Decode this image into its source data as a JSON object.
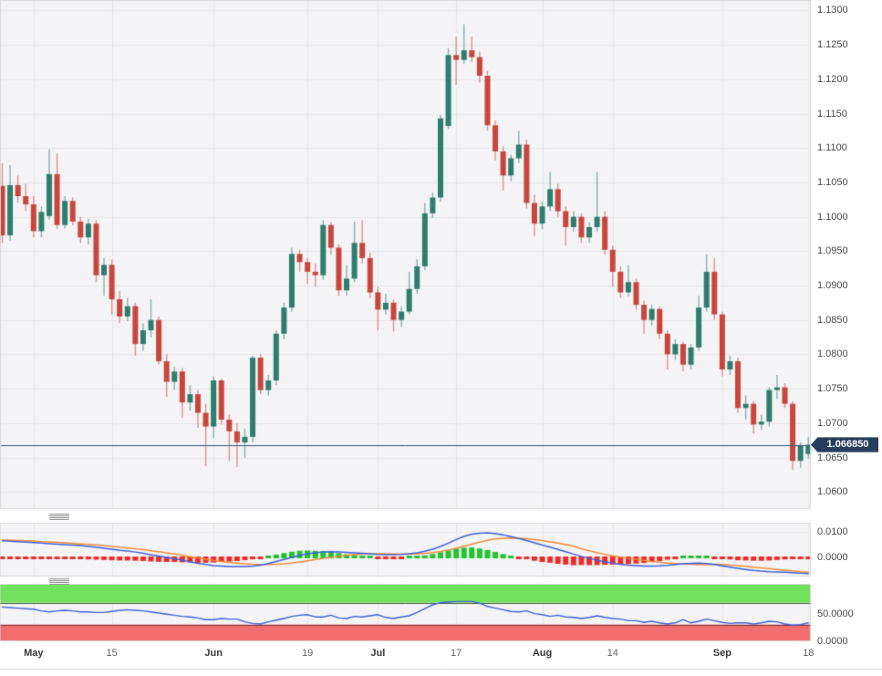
{
  "chart_data": {
    "type": "candlestick",
    "layout_hint": "three stacked panels: price candlesticks, MACD, RSI; shared time axis; right-side value axes; grid on",
    "main_panel": {
      "y_tick_labels": [
        "1.1300",
        "1.1250",
        "1.1200",
        "1.1150",
        "1.1100",
        "1.1050",
        "1.1000",
        "1.0950",
        "1.0900",
        "1.0850",
        "1.0800",
        "1.0750",
        "1.0700",
        "1.0650",
        "1.0600"
      ],
      "y_range": [
        1.0572,
        1.1315
      ],
      "last_price_label": "1.066850",
      "price_line_value": 1.06685,
      "candles_format": [
        "open",
        "high",
        "low",
        "close"
      ],
      "candles": [
        [
          1.1045,
          1.1078,
          1.0962,
          1.0973
        ],
        [
          1.0973,
          1.1075,
          1.0965,
          1.1046
        ],
        [
          1.1046,
          1.106,
          1.102,
          1.103
        ],
        [
          1.103,
          1.1048,
          1.1008,
          1.1018
        ],
        [
          1.1018,
          1.103,
          1.097,
          1.0979
        ],
        [
          1.0979,
          1.1015,
          1.097,
          1.1007
        ],
        [
          1.1001,
          1.1098,
          1.0996,
          1.1062
        ],
        [
          1.1062,
          1.1092,
          1.0982,
          1.0988
        ],
        [
          1.0988,
          1.103,
          1.0983,
          1.1023
        ],
        [
          1.1023,
          1.1028,
          1.0988,
          1.0993
        ],
        [
          1.0993,
          1.1,
          1.0962,
          1.097
        ],
        [
          1.097,
          1.0997,
          1.096,
          1.099
        ],
        [
          1.099,
          1.0995,
          1.0905,
          1.0915
        ],
        [
          1.0915,
          1.094,
          1.0885,
          1.093
        ],
        [
          1.093,
          1.0938,
          1.0858,
          1.088
        ],
        [
          1.088,
          1.0892,
          1.0845,
          1.0855
        ],
        [
          1.0855,
          1.0882,
          1.0848,
          1.087
        ],
        [
          1.087,
          1.0875,
          1.0798,
          1.0815
        ],
        [
          1.0815,
          1.0845,
          1.0805,
          1.0835
        ],
        [
          1.0835,
          1.088,
          1.0825,
          1.085
        ],
        [
          1.085,
          1.0855,
          1.0785,
          1.079
        ],
        [
          1.079,
          1.08,
          1.0738,
          1.076
        ],
        [
          1.076,
          1.0782,
          1.0748,
          1.0775
        ],
        [
          1.0775,
          1.078,
          1.0708,
          1.073
        ],
        [
          1.073,
          1.0755,
          1.0718,
          1.0742
        ],
        [
          1.0742,
          1.0748,
          1.0693,
          1.0715
        ],
        [
          1.0715,
          1.0728,
          1.0638,
          1.0695
        ],
        [
          1.0695,
          1.0768,
          1.0678,
          1.0762
        ],
        [
          1.0762,
          1.0765,
          1.0698,
          1.0705
        ],
        [
          1.0705,
          1.0712,
          1.0645,
          1.0688
        ],
        [
          1.0688,
          1.07,
          1.0636,
          1.0672
        ],
        [
          1.0672,
          1.0692,
          1.065,
          1.068
        ],
        [
          1.068,
          1.0798,
          1.0672,
          1.0795
        ],
        [
          1.0795,
          1.08,
          1.0742,
          1.0748
        ],
        [
          1.0748,
          1.077,
          1.074,
          1.0762
        ],
        [
          1.0762,
          1.0835,
          1.0755,
          1.083
        ],
        [
          1.083,
          1.0875,
          1.0822,
          1.0868
        ],
        [
          1.0868,
          1.0955,
          1.0862,
          1.0946
        ],
        [
          1.0946,
          1.0952,
          1.092,
          1.0934
        ],
        [
          1.0934,
          1.094,
          1.0902,
          1.092
        ],
        [
          1.092,
          1.0932,
          1.0898,
          1.0915
        ],
        [
          1.0915,
          1.0995,
          1.0908,
          1.0988
        ],
        [
          1.0988,
          1.0992,
          1.0945,
          1.0955
        ],
        [
          1.0955,
          1.096,
          1.0885,
          1.0893
        ],
        [
          1.0893,
          1.093,
          1.0885,
          1.091
        ],
        [
          1.091,
          1.0993,
          1.0905,
          1.0962
        ],
        [
          1.0962,
          1.0995,
          1.0932,
          1.094
        ],
        [
          1.094,
          1.0948,
          1.0882,
          1.089
        ],
        [
          1.089,
          1.0898,
          1.0835,
          1.0865
        ],
        [
          1.0865,
          1.0888,
          1.0858,
          1.0875
        ],
        [
          1.0875,
          1.088,
          1.0833,
          1.085
        ],
        [
          1.085,
          1.087,
          1.084,
          1.0862
        ],
        [
          1.0862,
          1.092,
          1.0858,
          1.0895
        ],
        [
          1.0895,
          1.0938,
          1.0888,
          1.0928
        ],
        [
          1.0928,
          1.102,
          1.0922,
          1.1005
        ],
        [
          1.1005,
          1.1035,
          1.0998,
          1.1028
        ],
        [
          1.1028,
          1.1148,
          1.1022,
          1.1143
        ],
        [
          1.1132,
          1.1245,
          1.1128,
          1.1235
        ],
        [
          1.1235,
          1.1262,
          1.1192,
          1.1228
        ],
        [
          1.1228,
          1.128,
          1.1222,
          1.1242
        ],
        [
          1.1242,
          1.1262,
          1.1225,
          1.1232
        ],
        [
          1.1232,
          1.124,
          1.1195,
          1.1205
        ],
        [
          1.1205,
          1.1212,
          1.1125,
          1.1133
        ],
        [
          1.1133,
          1.114,
          1.1082,
          1.1095
        ],
        [
          1.1095,
          1.1102,
          1.1038,
          1.106
        ],
        [
          1.106,
          1.109,
          1.1052,
          1.1085
        ],
        [
          1.1085,
          1.1125,
          1.1078,
          1.1105
        ],
        [
          1.1105,
          1.1112,
          1.1012,
          1.102
        ],
        [
          1.102,
          1.1032,
          1.0972,
          1.099
        ],
        [
          1.099,
          1.1022,
          1.0982,
          1.1015
        ],
        [
          1.1015,
          1.1065,
          1.1008,
          1.104
        ],
        [
          1.104,
          1.1048,
          1.1,
          1.1008
        ],
        [
          1.1008,
          1.1015,
          1.0958,
          1.0985
        ],
        [
          1.0985,
          1.1008,
          1.0978,
          1.1
        ],
        [
          1.1,
          1.1005,
          1.0962,
          1.097
        ],
        [
          1.097,
          1.0992,
          1.0962,
          1.0985
        ],
        [
          1.0985,
          1.1065,
          1.0978,
          1.1
        ],
        [
          1.1,
          1.1008,
          1.0945,
          1.0952
        ],
        [
          1.0952,
          1.0958,
          1.0898,
          1.092
        ],
        [
          1.092,
          1.0928,
          1.0882,
          1.089
        ],
        [
          1.089,
          1.093,
          1.0884,
          1.0905
        ],
        [
          1.0905,
          1.091,
          1.0865,
          1.0872
        ],
        [
          1.0872,
          1.0878,
          1.083,
          1.085
        ],
        [
          1.085,
          1.0872,
          1.0842,
          1.0866
        ],
        [
          1.0866,
          1.087,
          1.0822,
          1.083
        ],
        [
          1.083,
          1.0835,
          1.0778,
          1.08
        ],
        [
          1.08,
          1.0822,
          1.0792,
          1.0815
        ],
        [
          1.0815,
          1.0818,
          1.0775,
          1.0785
        ],
        [
          1.0785,
          1.0815,
          1.0778,
          1.081
        ],
        [
          1.081,
          1.0885,
          1.0805,
          1.0868
        ],
        [
          1.0868,
          1.0945,
          1.0862,
          1.092
        ],
        [
          1.092,
          1.094,
          1.085,
          1.0858
        ],
        [
          1.0858,
          1.0862,
          1.0768,
          1.0778
        ],
        [
          1.0778,
          1.0798,
          1.077,
          1.079
        ],
        [
          1.079,
          1.0795,
          1.0715,
          1.0722
        ],
        [
          1.0722,
          1.074,
          1.0705,
          1.0728
        ],
        [
          1.0728,
          1.0732,
          1.0685,
          1.0698
        ],
        [
          1.0698,
          1.0712,
          1.069,
          1.0702
        ],
        [
          1.0702,
          1.0752,
          1.0695,
          1.0748
        ],
        [
          1.0748,
          1.077,
          1.0735,
          1.0752
        ],
        [
          1.0752,
          1.0758,
          1.0722,
          1.0728
        ],
        [
          1.0728,
          1.0732,
          1.0632,
          1.0645
        ],
        [
          1.0645,
          1.0672,
          1.0635,
          1.0668
        ],
        [
          1.0655,
          1.068,
          1.0648,
          1.06685
        ]
      ]
    },
    "macd_panel": {
      "y_tick_labels": [
        "0.0100",
        "0.0000"
      ],
      "y_tick_values": [
        0.01,
        0.0
      ],
      "values_scale": 0.0001,
      "macd": [
        65,
        63,
        62,
        60,
        58,
        56,
        54,
        52,
        50,
        48,
        46,
        43,
        40,
        36,
        32,
        28,
        25,
        21,
        16,
        10,
        5,
        0,
        -5,
        -11,
        -17,
        -23,
        -28,
        -32,
        -34,
        -36,
        -36,
        -36,
        -34,
        -30,
        -24,
        -16,
        -8,
        0,
        8,
        14,
        18,
        21,
        22,
        21,
        20,
        18,
        16,
        14,
        12,
        11,
        11,
        12,
        14,
        18,
        24,
        32,
        43,
        56,
        70,
        82,
        91,
        95,
        96,
        93,
        88,
        81,
        74,
        66,
        57,
        48,
        40,
        31,
        22,
        13,
        4,
        -4,
        -11,
        -17,
        -22,
        -27,
        -30,
        -32,
        -34,
        -34,
        -33,
        -31,
        -28,
        -25,
        -23,
        -22,
        -24,
        -28,
        -33,
        -38,
        -43,
        -47,
        -51,
        -54,
        -56,
        -57,
        -58,
        -60,
        -62,
        -63
      ],
      "signal": [
        68,
        67,
        66,
        65,
        64,
        62,
        61,
        59,
        57,
        55,
        53,
        51,
        49,
        46,
        43,
        40,
        37,
        34,
        30,
        26,
        22,
        18,
        13,
        8,
        3,
        -2,
        -7,
        -12,
        -16,
        -20,
        -22,
        -25,
        -27,
        -28,
        -28,
        -27,
        -25,
        -22,
        -18,
        -13,
        -8,
        -4,
        0,
        4,
        8,
        11,
        13,
        14,
        14,
        14,
        13,
        13,
        13,
        14,
        16,
        19,
        23,
        29,
        36,
        44,
        52,
        60,
        67,
        72,
        75,
        76,
        75,
        73,
        70,
        66,
        61,
        56,
        50,
        44,
        34,
        26,
        19,
        12,
        6,
        1,
        -4,
        -8,
        -12,
        -16,
        -19,
        -22,
        -24,
        -26,
        -27,
        -28,
        -28,
        -27,
        -28,
        -30,
        -32,
        -35,
        -38,
        -41,
        -44,
        -47,
        -50,
        -53,
        -56,
        -58
      ],
      "histogram_rule": "macd minus signal; green when positive, red when negative"
    },
    "rsi_panel": {
      "y_tick_labels": [
        "50.0000",
        "0.0000"
      ],
      "y_tick_values": [
        50,
        0
      ],
      "overbought_level": 70,
      "oversold_level": 30,
      "values": [
        62,
        61,
        60,
        59,
        58,
        55,
        53,
        55,
        56,
        55,
        53,
        53,
        52,
        52,
        54,
        56,
        57,
        56,
        55,
        53,
        51,
        49,
        47,
        45,
        44,
        42,
        39,
        39,
        41,
        40,
        40,
        35,
        32,
        31,
        35,
        38,
        41,
        45,
        47,
        48,
        44,
        44,
        47,
        42,
        41,
        45,
        44,
        46,
        48,
        43,
        41,
        44,
        46,
        52,
        59,
        66,
        70,
        71,
        72,
        72,
        72,
        69,
        63,
        60,
        57,
        54,
        53,
        55,
        50,
        48,
        45,
        47,
        44,
        43,
        41,
        43,
        46,
        43,
        41,
        40,
        37,
        37,
        34,
        36,
        33,
        31,
        33,
        39,
        33,
        36,
        40,
        37,
        34,
        32,
        33,
        33,
        31,
        33,
        36,
        35,
        31,
        29,
        30,
        33
      ]
    },
    "x_axis": {
      "ticks": [
        {
          "label": "May",
          "index": 4,
          "bold": true
        },
        {
          "label": "15",
          "index": 14,
          "bold": false
        },
        {
          "label": "Jun",
          "index": 27,
          "bold": true
        },
        {
          "label": "19",
          "index": 39,
          "bold": false
        },
        {
          "label": "Jul",
          "index": 48,
          "bold": true
        },
        {
          "label": "17",
          "index": 58,
          "bold": false
        },
        {
          "label": "Aug",
          "index": 69,
          "bold": true
        },
        {
          "label": "14",
          "index": 78,
          "bold": false
        },
        {
          "label": "Sep",
          "index": 92,
          "bold": true
        },
        {
          "label": "18",
          "index": 103,
          "bold": false
        }
      ]
    },
    "colors": {
      "up_candle": "#2e7d6d",
      "down_candle": "#c9463c",
      "macd_line": "#4160d8",
      "signal_line": "#f08c3a",
      "hist_positive": "#22c52e",
      "hist_negative": "#ee2b27",
      "rsi_line": "#4160d8",
      "overbought_band": "#70e15c",
      "oversold_band": "#f26d6d",
      "price_line": "#3a5375",
      "badge_bg": "#263e5c",
      "badge_text": "#ffffff"
    }
  }
}
